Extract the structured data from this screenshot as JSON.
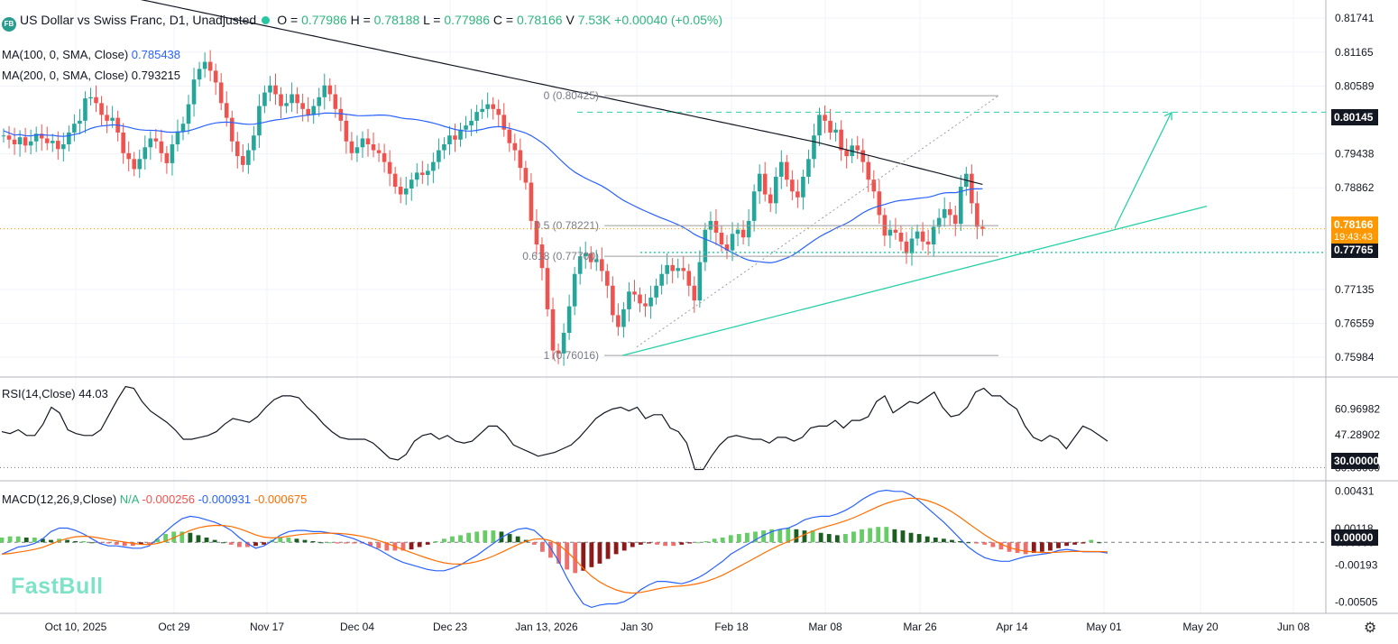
{
  "header": {
    "badge": "FB",
    "title": "US Dollar vs Swiss Franc, D1, Unadjusted",
    "ohlc": [
      {
        "label": "O =",
        "value": "0.77986"
      },
      {
        "label": "H =",
        "value": "0.78188"
      },
      {
        "label": "L =",
        "value": "0.77986"
      },
      {
        "label": "C =",
        "value": "0.78166"
      },
      {
        "label": "V",
        "value": "7.53K"
      }
    ],
    "change": "+0.00040 (+0.05%)"
  },
  "indicators": {
    "ma100": {
      "label": "MA(100, 0, SMA, Close)",
      "value": "0.785438",
      "color": "#2962ff"
    },
    "ma200": {
      "label": "MA(200, 0, SMA, Close)",
      "value": "0.793215",
      "color": "#131722"
    },
    "rsi": {
      "label": "RSI(14,Close)",
      "value": "44.03"
    },
    "macd": {
      "label": "MACD(12,26,9,Close)",
      "na": "N/A",
      "hist": "-0.000256",
      "macd": "-0.000931",
      "signal": "-0.000675"
    }
  },
  "price_tags": {
    "target": "0.80145",
    "current": "0.78166",
    "countdown": "19:43:43",
    "support": "0.77765",
    "rsi_level": "30.00000",
    "macd_zero": "0.00000"
  },
  "watermark": "FastBull",
  "colors": {
    "up": "#26a69a",
    "down": "#ef5350",
    "ma100": "#2962ff",
    "ma200": "#131722",
    "trend": "#2ad0a8",
    "macd": "#2962ff",
    "signal": "#ff6d00"
  },
  "chart_data": [
    {
      "type": "candlestick",
      "name": "USD/CHF D1",
      "x_ticks": [
        "Oct 10, 2025",
        "Oct 29",
        "Nov 17",
        "Dec 04",
        "Dec 23",
        "Jan 13, 2026",
        "Jan 30",
        "Feb 18",
        "Mar 08",
        "Mar 26",
        "Apr 14",
        "May 01",
        "May 20",
        "Jun 08"
      ],
      "y_ticks": [
        0.81741,
        0.81165,
        0.80589,
        0.79438,
        0.78862,
        0.77135,
        0.76559,
        0.75984
      ],
      "ylim": [
        0.7565,
        0.8205
      ],
      "fibonacci": [
        {
          "label": "0 (0.80425)",
          "value": 0.80425
        },
        {
          "label": "0.5 (0.78221)",
          "value": 0.78221
        },
        {
          "label": "0.618 (0.77700)",
          "value": 0.777
        },
        {
          "label": "1 (0.76016)",
          "value": 0.76016
        }
      ],
      "close": [
        0.7975,
        0.7968,
        0.796,
        0.7972,
        0.7958,
        0.7965,
        0.7978,
        0.797,
        0.7962,
        0.7966,
        0.7952,
        0.796,
        0.798,
        0.7995,
        0.8,
        0.8038,
        0.804,
        0.803,
        0.801,
        0.8,
        0.8005,
        0.798,
        0.7945,
        0.7935,
        0.7918,
        0.7935,
        0.7955,
        0.797,
        0.7965,
        0.7945,
        0.7928,
        0.796,
        0.7982,
        0.7995,
        0.8028,
        0.807,
        0.8088,
        0.81,
        0.8085,
        0.8065,
        0.803,
        0.8005,
        0.7965,
        0.794,
        0.7925,
        0.795,
        0.7975,
        0.8025,
        0.8048,
        0.806,
        0.8045,
        0.8025,
        0.803,
        0.8045,
        0.803,
        0.802,
        0.801,
        0.8025,
        0.804,
        0.806,
        0.8045,
        0.802,
        0.8,
        0.7965,
        0.7945,
        0.7955,
        0.797,
        0.796,
        0.795,
        0.7945,
        0.793,
        0.791,
        0.7888,
        0.7875,
        0.7885,
        0.79,
        0.7912,
        0.7908,
        0.7915,
        0.793,
        0.795,
        0.796,
        0.7975,
        0.7968,
        0.7985,
        0.7992,
        0.8,
        0.8015,
        0.802,
        0.8028,
        0.802,
        0.801,
        0.7985,
        0.7962,
        0.795,
        0.792,
        0.7895,
        0.783,
        0.779,
        0.775,
        0.768,
        0.761,
        0.7605,
        0.764,
        0.7685,
        0.774,
        0.777,
        0.7775,
        0.776,
        0.7765,
        0.7745,
        0.772,
        0.767,
        0.765,
        0.768,
        0.771,
        0.7705,
        0.769,
        0.7685,
        0.77,
        0.772,
        0.774,
        0.7755,
        0.7745,
        0.775,
        0.7745,
        0.772,
        0.7695,
        0.776,
        0.7815,
        0.783,
        0.781,
        0.779,
        0.778,
        0.7808,
        0.7815,
        0.7802,
        0.783,
        0.788,
        0.791,
        0.7875,
        0.786,
        0.7905,
        0.793,
        0.79,
        0.788,
        0.787,
        0.7905,
        0.7935,
        0.7975,
        0.801,
        0.8,
        0.798,
        0.7985,
        0.795,
        0.794,
        0.7958,
        0.795,
        0.793,
        0.79,
        0.788,
        0.784,
        0.7805,
        0.7815,
        0.781,
        0.7795,
        0.7775,
        0.78,
        0.7812,
        0.7795,
        0.779,
        0.782,
        0.7835,
        0.785,
        0.784,
        0.7825,
        0.7888,
        0.791,
        0.786,
        0.782,
        0.78166
      ]
    },
    {
      "type": "line",
      "name": "RSI(14,Close)",
      "y_ticks": [
        60.96982,
        47.28902,
        30.0
      ],
      "ylim": [
        23,
        78
      ],
      "values": [
        49,
        48,
        50,
        47,
        47,
        53,
        62,
        59,
        50,
        48,
        47,
        47,
        50,
        58,
        66,
        73,
        72,
        65,
        60,
        57,
        54,
        50,
        45,
        45,
        46,
        47,
        49,
        53,
        56,
        55,
        54,
        57,
        62,
        66,
        68,
        68,
        67,
        62,
        58,
        53,
        49,
        46,
        45,
        45,
        45,
        43,
        39,
        35,
        34,
        37,
        44,
        47,
        48,
        45,
        47,
        44,
        43,
        44,
        48,
        52,
        52,
        48,
        42,
        40,
        38,
        36,
        37,
        38,
        40,
        42,
        46,
        51,
        56,
        59,
        61,
        62,
        60,
        62,
        56,
        58,
        58,
        51,
        49,
        43,
        29,
        29,
        36,
        42,
        46,
        47,
        46,
        45,
        45,
        43,
        46,
        46,
        44,
        46,
        51,
        52,
        52,
        55,
        51,
        55,
        55,
        57,
        65,
        68,
        59,
        62,
        65,
        64,
        67,
        70,
        62,
        57,
        58,
        62,
        70,
        72,
        68,
        68,
        64,
        61,
        52,
        46,
        44,
        47,
        45,
        40,
        46,
        52,
        50,
        47,
        44
      ]
    },
    {
      "type": "line",
      "name": "MACD(12,26,9,Close)",
      "y_ticks": [
        0.00431,
        0.00118,
        0.0,
        -0.00193,
        -0.00505
      ],
      "ylim": [
        -0.006,
        0.0052
      ],
      "histogram": [
        0.0004,
        0.0005,
        0.0005,
        0.0004,
        0.0004,
        0.0003,
        0.0002,
        0.0003,
        0.0002,
        0.0001,
        0.0001,
        0.0,
        -0.0001,
        -0.0001,
        -0.0002,
        -0.0003,
        -0.0003,
        -0.0002,
        -0.0002,
        0.0003,
        0.0007,
        0.0009,
        0.0009,
        0.0008,
        0.0006,
        0.0004,
        0.0002,
        0.0,
        -0.0002,
        -0.0004,
        -0.0004,
        -0.0003,
        -0.0002,
        0.0002,
        0.0004,
        0.0004,
        0.0003,
        0.0002,
        0.0001,
        0.0,
        0.0,
        -0.0001,
        -0.0001,
        -0.0001,
        -0.0001,
        -0.0003,
        -0.0005,
        -0.0007,
        -0.0007,
        -0.0007,
        -0.0006,
        -0.0004,
        -0.0002,
        0.0001,
        0.0003,
        0.0005,
        0.0006,
        0.0008,
        0.0009,
        0.001,
        0.001,
        0.0009,
        0.0007,
        0.0005,
        0.0002,
        -0.0002,
        -0.0008,
        -0.0013,
        -0.0018,
        -0.0023,
        -0.0026,
        -0.0024,
        -0.0021,
        -0.0018,
        -0.0014,
        -0.001,
        -0.0007,
        -0.0004,
        -0.0002,
        -0.0001,
        -0.0002,
        -0.0003,
        -0.0003,
        -0.0002,
        -0.0001,
        0.0,
        0.0001,
        0.0003,
        0.0004,
        0.0006,
        0.0007,
        0.0008,
        0.0009,
        0.001,
        0.0011,
        0.0011,
        0.0012,
        0.0011,
        0.001,
        0.001,
        0.0008,
        0.0007,
        0.0006,
        0.0007,
        0.0009,
        0.0011,
        0.0012,
        0.0013,
        0.0013,
        0.0011,
        0.001,
        0.0008,
        0.0007,
        0.0005,
        0.0004,
        0.0003,
        0.0002,
        0.0001,
        0.0,
        -0.0001,
        -0.0002,
        -0.0004,
        -0.0006,
        -0.0008,
        -0.0009,
        -0.001,
        -0.0009,
        -0.0008,
        -0.0007,
        -0.0005,
        -0.0003,
        -0.0002,
        -0.0001,
        0.0002,
        0.0
      ],
      "macd": [
        -0.001,
        -0.0007,
        -0.0004,
        -0.0003,
        -0.0001,
        0.0003,
        0.0009,
        0.0012,
        0.0012,
        0.001,
        0.0007,
        0.0003,
        -0.0001,
        -0.0003,
        -0.0003,
        -0.0004,
        -0.0005,
        -0.0005,
        -0.0003,
        0.0003,
        0.0009,
        0.0015,
        0.002,
        0.0022,
        0.0021,
        0.0019,
        0.0017,
        0.0014,
        0.001,
        0.0004,
        -0.0001,
        -0.0005,
        -0.0003,
        0.0001,
        0.0006,
        0.0009,
        0.001,
        0.001,
        0.0009,
        0.0009,
        0.0008,
        0.0007,
        0.0005,
        0.0003,
        0.0,
        -0.0003,
        -0.0006,
        -0.001,
        -0.0014,
        -0.0017,
        -0.0019,
        -0.0021,
        -0.0023,
        -0.0024,
        -0.0024,
        -0.0022,
        -0.0019,
        -0.0015,
        -0.0011,
        -0.0006,
        -0.0001,
        0.0004,
        0.0008,
        0.0011,
        0.0012,
        0.001,
        0.0004,
        -0.0005,
        -0.0016,
        -0.003,
        -0.0042,
        -0.0052,
        -0.0055,
        -0.0053,
        -0.0052,
        -0.0052,
        -0.005,
        -0.0046,
        -0.004,
        -0.0036,
        -0.0033,
        -0.0033,
        -0.0034,
        -0.0035,
        -0.0033,
        -0.003,
        -0.0026,
        -0.0021,
        -0.0016,
        -0.001,
        -0.0006,
        -0.0002,
        0.0002,
        0.0006,
        0.0009,
        0.0011,
        0.0012,
        0.0015,
        0.0019,
        0.0021,
        0.0022,
        0.0022,
        0.0024,
        0.0027,
        0.0031,
        0.0036,
        0.004,
        0.0043,
        0.0044,
        0.0043,
        0.0043,
        0.004,
        0.0035,
        0.0029,
        0.0023,
        0.0017,
        0.001,
        0.0003,
        -0.0004,
        -0.0009,
        -0.0013,
        -0.0015,
        -0.0016,
        -0.0016,
        -0.0014,
        -0.0012,
        -0.0011,
        -0.001,
        -0.0009,
        -0.0007,
        -0.0006,
        -0.0007,
        -0.0008,
        -0.0008,
        -0.0008,
        -0.0009
      ]
    }
  ]
}
